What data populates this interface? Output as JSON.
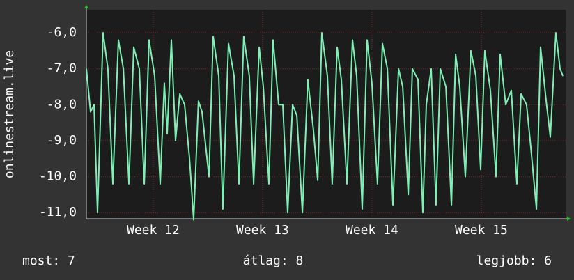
{
  "chart_data": {
    "type": "line",
    "ylabel": "onlinestream.live",
    "color": "#7ff0b4",
    "grid": true,
    "x": [
      11.389,
      11.427,
      11.459,
      11.491,
      11.542,
      11.586,
      11.631,
      11.682,
      11.727,
      11.778,
      11.822,
      11.873,
      11.918,
      11.962,
      12.013,
      12.064,
      12.102,
      12.128,
      12.166,
      12.204,
      12.243,
      12.287,
      12.332,
      12.37,
      12.414,
      12.446,
      12.51,
      12.548,
      12.599,
      12.637,
      12.688,
      12.739,
      12.784,
      12.828,
      12.879,
      12.918,
      12.969,
      13.007,
      13.058,
      13.096,
      13.147,
      13.185,
      13.23,
      13.274,
      13.313,
      13.364,
      13.414,
      13.465,
      13.504,
      13.542,
      13.593,
      13.637,
      13.682,
      13.72,
      13.771,
      13.822,
      13.86,
      13.911,
      13.956,
      14.0,
      14.051,
      14.096,
      14.141,
      14.192,
      14.243,
      14.281,
      14.332,
      14.37,
      14.421,
      14.465,
      14.497,
      14.542,
      14.586,
      14.625,
      14.676,
      14.727,
      14.765,
      14.803,
      14.854,
      14.905,
      14.95,
      14.994,
      15.032,
      15.083,
      15.134,
      15.172,
      15.223,
      15.274,
      15.325,
      15.364,
      15.414,
      15.453,
      15.504,
      15.542,
      15.593,
      15.631,
      15.682,
      15.72,
      15.746
    ],
    "values": [
      -7.0,
      -8.2,
      -8.0,
      -11.0,
      -6.0,
      -7.0,
      -10.2,
      -6.2,
      -7.0,
      -10.2,
      -6.4,
      -7.0,
      -10.2,
      -6.2,
      -7.2,
      -10.2,
      -7.4,
      -8.8,
      -6.2,
      -9.0,
      -7.7,
      -8.0,
      -9.5,
      -11.2,
      -7.9,
      -8.2,
      -10.0,
      -6.1,
      -7.2,
      -10.9,
      -6.3,
      -7.2,
      -10.2,
      -6.1,
      -7.2,
      -10.2,
      -6.4,
      -7.5,
      -10.2,
      -6.2,
      -8.0,
      -8.0,
      -11.0,
      -8.0,
      -8.3,
      -11.0,
      -7.3,
      -8.7,
      -10.1,
      -6.0,
      -7.2,
      -10.2,
      -6.4,
      -7.3,
      -10.2,
      -6.2,
      -7.2,
      -10.9,
      -6.2,
      -7.4,
      -10.2,
      -6.3,
      -7.0,
      -10.8,
      -7.0,
      -7.5,
      -10.5,
      -7.0,
      -7.3,
      -11.0,
      -8.0,
      -7.0,
      -10.8,
      -7.0,
      -7.5,
      -10.8,
      -6.6,
      -7.5,
      -10.0,
      -6.5,
      -7.2,
      -9.8,
      -6.5,
      -7.6,
      -10.0,
      -6.6,
      -8.0,
      -7.6,
      -10.2,
      -7.7,
      -8.0,
      -9.2,
      -10.9,
      -6.4,
      -7.9,
      -8.9,
      -6.0,
      -7.0,
      -7.2
    ],
    "xlim": [
      11.389,
      15.771
    ],
    "xticks": [
      {
        "value": 12,
        "label": "Week 12"
      },
      {
        "value": 13,
        "label": "Week 13"
      },
      {
        "value": 14,
        "label": "Week 14"
      },
      {
        "value": 15,
        "label": "Week 15"
      }
    ],
    "ylim": [
      -11.17,
      -5.36
    ],
    "yticks": [
      {
        "value": -6,
        "label": "-6,0"
      },
      {
        "value": -7,
        "label": "-7,0"
      },
      {
        "value": -8,
        "label": "-8,0"
      },
      {
        "value": -9,
        "label": "-9,0"
      },
      {
        "value": -10,
        "label": "-10,0"
      },
      {
        "value": -11,
        "label": "-11,0"
      }
    ],
    "footer": [
      "most: 7",
      "átlag: 8",
      "legjobb: 6"
    ]
  }
}
